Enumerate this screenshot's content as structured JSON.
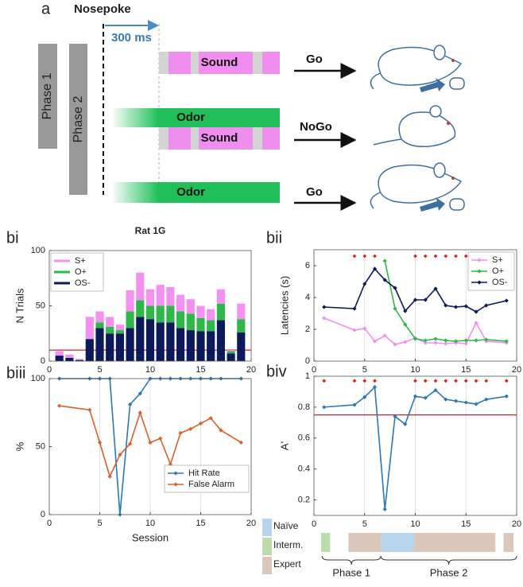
{
  "diagram": {
    "label": "a",
    "nosepoke": "Nosepoke",
    "delay": "300 ms",
    "phases": [
      "Phase 1",
      "Phase 2"
    ],
    "stimuli": [
      "Sound",
      "Odor",
      "Sound",
      "Odor"
    ],
    "responses": [
      "Go",
      "NoGo",
      "Go"
    ]
  },
  "chart_data": [
    {
      "type": "bar",
      "stacked": true,
      "panel_label": "bi",
      "title": "Rat 1G",
      "y_label": "N Trials",
      "x": [
        1,
        2,
        3,
        4,
        5,
        6,
        7,
        8,
        9,
        10,
        11,
        12,
        13,
        14,
        15,
        16,
        17,
        18,
        19
      ],
      "series": [
        {
          "name": "S+",
          "color": "#f490f0",
          "values": [
            4,
            3,
            1,
            20,
            10,
            9,
            5,
            19,
            25,
            15,
            19,
            17,
            15,
            13,
            11,
            10,
            13,
            1,
            14
          ]
        },
        {
          "name": "O+",
          "color": "#2fb84a",
          "values": [
            0,
            0,
            0,
            0,
            5,
            6,
            3,
            15,
            15,
            12,
            15,
            15,
            15,
            15,
            12,
            10,
            15,
            2,
            12
          ]
        },
        {
          "name": "OS-",
          "color": "#0c1a5c",
          "values": [
            5,
            3,
            1,
            20,
            30,
            25,
            25,
            30,
            40,
            38,
            35,
            35,
            30,
            28,
            27,
            27,
            37,
            7,
            26
          ]
        }
      ],
      "xlim": [
        0,
        20
      ],
      "xticks": [
        0,
        5,
        10,
        15,
        20
      ],
      "ylim": [
        0,
        100
      ],
      "yticks": [
        0,
        50,
        100
      ],
      "threshold": 10,
      "threshold_color": "#d42020",
      "grid": false,
      "legend": "upper left"
    },
    {
      "type": "line",
      "panel_label": "bii",
      "y_label": "Latencies (s)",
      "x": [
        1,
        4,
        5,
        6,
        7,
        8,
        9,
        10,
        11,
        12,
        13,
        14,
        15,
        16,
        17,
        19
      ],
      "series": [
        {
          "name": "S+",
          "color": "#ee90ee",
          "values": [
            2.7,
            1.95,
            2.05,
            1.25,
            1.6,
            1.05,
            1.2,
            1.45,
            1.15,
            1.15,
            1.1,
            1.15,
            1.1,
            2.4,
            1.25,
            1.15
          ]
        },
        {
          "name": "O+",
          "color": "#2fb84a",
          "values": [
            null,
            null,
            null,
            null,
            6.3,
            3.3,
            2.3,
            1.4,
            1.3,
            1.4,
            1.3,
            1.25,
            1.3,
            1.3,
            1.35,
            1.25
          ]
        },
        {
          "name": "OS-",
          "color": "#0c1a5c",
          "values": [
            3.4,
            3.3,
            4.85,
            5.8,
            5.1,
            4.6,
            3.15,
            3.85,
            3.85,
            4.55,
            3.5,
            3.4,
            3.45,
            3.1,
            3.5,
            3.8
          ]
        }
      ],
      "xlim": [
        0,
        20
      ],
      "xticks": [
        0,
        5,
        10,
        15,
        20
      ],
      "ylim": [
        0,
        7
      ],
      "yticks": [
        0,
        2,
        4,
        6
      ],
      "grid": true,
      "legend": "upper right",
      "significance": {
        "x": [
          4,
          5,
          6,
          10,
          11,
          12,
          13,
          14,
          15,
          16,
          17,
          19
        ],
        "y": 6.6,
        "color": "#e02020"
      }
    },
    {
      "type": "line",
      "panel_label": "biii",
      "y_label": "%",
      "x_label": "Session",
      "x": [
        1,
        4,
        5,
        6,
        7,
        8,
        9,
        10,
        11,
        12,
        13,
        14,
        15,
        16,
        17,
        19
      ],
      "series": [
        {
          "name": "Hit Rate",
          "color": "#2a78b8",
          "values": [
            100,
            100,
            100,
            100,
            0,
            81,
            89,
            100,
            100,
            100,
            100,
            100,
            100,
            100,
            100,
            100
          ]
        },
        {
          "name": "False Alarm",
          "color": "#d8602a",
          "values": [
            80,
            77,
            53,
            28,
            44,
            52,
            75,
            53,
            56,
            37,
            60,
            63,
            67,
            71,
            62,
            53
          ]
        }
      ],
      "xlim": [
        0,
        20
      ],
      "xticks": [
        0,
        5,
        10,
        15,
        20
      ],
      "ylim": [
        0,
        100
      ],
      "yticks": [
        0,
        50,
        100
      ],
      "grid": true,
      "legend": "lower right"
    },
    {
      "type": "line",
      "panel_label": "biv",
      "y_label": "A'",
      "x": [
        1,
        4,
        5,
        6,
        7,
        8,
        9,
        10,
        11,
        12,
        13,
        14,
        15,
        16,
        17,
        19
      ],
      "series": [
        {
          "color": "#2a78b8",
          "values": [
            0.8,
            0.815,
            0.865,
            0.93,
            0.14,
            0.74,
            0.69,
            0.87,
            0.86,
            0.91,
            0.85,
            0.84,
            0.83,
            0.82,
            0.85,
            0.87
          ]
        }
      ],
      "xlim": [
        0,
        20
      ],
      "xticks": [
        0,
        5,
        10,
        15,
        20
      ],
      "ylim": [
        0.1,
        1
      ],
      "yticks": [
        0.2,
        0.4,
        0.6,
        0.8,
        1
      ],
      "grid": true,
      "threshold": 0.75,
      "threshold_color": "#d42020",
      "significance": {
        "x": [
          1,
          4,
          5,
          6,
          10,
          11,
          12,
          13,
          14,
          15,
          16,
          17,
          19
        ],
        "y": 0.97,
        "color": "#e02020"
      },
      "stages": [
        {
          "name": "Naïve",
          "color": "#b7d5ec"
        },
        {
          "name": "Interm.",
          "color": "#bcdcab"
        },
        {
          "name": "Expert",
          "color": "#dcc8ba"
        }
      ],
      "segments": [
        {
          "x": [
            0.7,
            1.6
          ],
          "color": "#bcdcab"
        },
        {
          "x": [
            3.4,
            6.6
          ],
          "color": "#dcc8ba"
        },
        {
          "x": [
            6.6,
            9.9
          ],
          "color": "#b7d5ec"
        },
        {
          "x": [
            9.9,
            17.9
          ],
          "color": "#dcc8ba"
        },
        {
          "x": [
            18.7,
            19.7
          ],
          "color": "#dcc8ba"
        }
      ],
      "phases": [
        {
          "name": "Phase 1",
          "x": [
            0.8,
            6.6
          ]
        },
        {
          "name": "Phase 2",
          "x": [
            6.6,
            20
          ]
        }
      ]
    }
  ]
}
